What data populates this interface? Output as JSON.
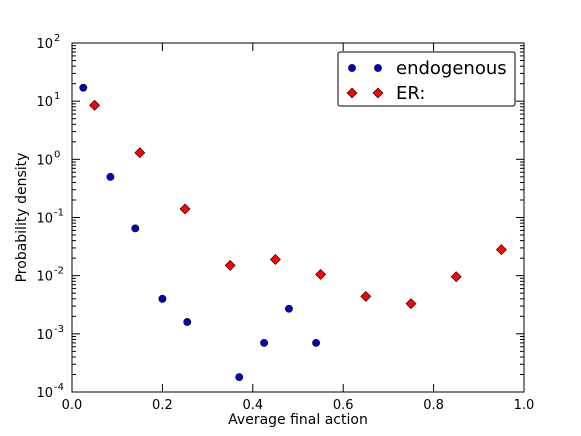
{
  "chart_data": {
    "type": "scatter",
    "title": "",
    "xlabel": "Average final action",
    "ylabel": "Probability density",
    "xlim": [
      0.0,
      1.0
    ],
    "ylim": [
      0.0001,
      100
    ],
    "yscale": "log",
    "grid": false,
    "legend_position": "top-right",
    "x_ticks": [
      "0.0",
      "0.2",
      "0.4",
      "0.6",
      "0.8",
      "1.0"
    ],
    "x_tick_values": [
      0.0,
      0.2,
      0.4,
      0.6,
      0.8,
      1.0
    ],
    "y_tick_exponents": [
      -4,
      -3,
      -2,
      -1,
      0,
      1,
      2
    ],
    "series": [
      {
        "name": "endogenous",
        "marker": "circle",
        "color": "#0000cc",
        "x": [
          0.025,
          0.085,
          0.14,
          0.2,
          0.255,
          0.37,
          0.425,
          0.48,
          0.54
        ],
        "y": [
          17,
          0.5,
          0.065,
          0.004,
          0.0016,
          0.00018,
          0.0007,
          0.0027,
          0.0007
        ]
      },
      {
        "name": "ER:",
        "marker": "diamond",
        "color": "#ff0000",
        "x": [
          0.05,
          0.15,
          0.25,
          0.35,
          0.45,
          0.55,
          0.65,
          0.75,
          0.85,
          0.95
        ],
        "y": [
          8.5,
          1.3,
          0.14,
          0.015,
          0.019,
          0.0105,
          0.0044,
          0.0033,
          0.0096,
          0.028
        ]
      }
    ]
  }
}
